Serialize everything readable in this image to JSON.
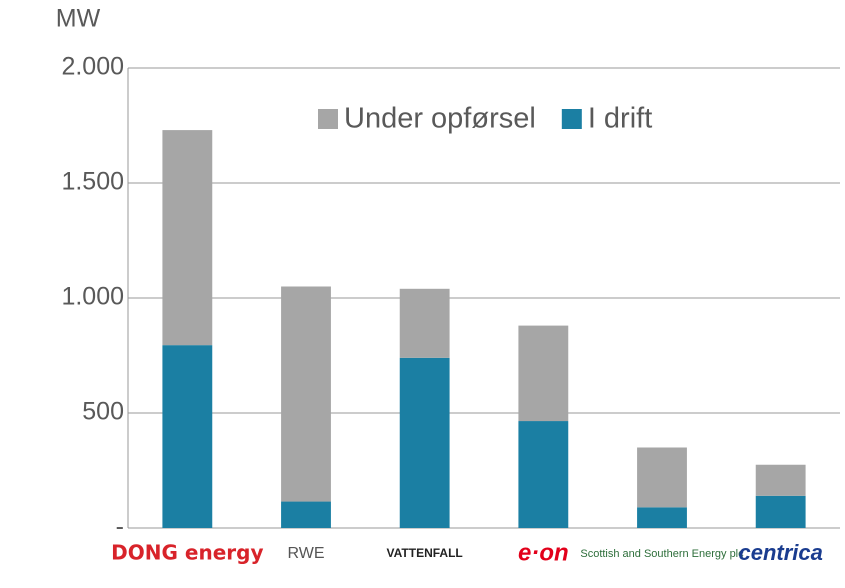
{
  "chart_data": {
    "type": "stacked_bar",
    "y_label": "MW",
    "categories": [
      "DONG energy",
      "RWE",
      "VATTENFALL",
      "e·on",
      "Scottish and Southern Energy plc",
      "centrica"
    ],
    "series": [
      {
        "name": "Under opførsel",
        "color": "#a6a6a6",
        "values": [
          935,
          935,
          300,
          415,
          260,
          135
        ]
      },
      {
        "name": "I drift",
        "color": "#1b7fa3",
        "values": [
          795,
          115,
          740,
          465,
          90,
          140
        ]
      }
    ],
    "ylim": [
      0,
      2000
    ],
    "yticks": [
      {
        "value": 0,
        "label": "-"
      },
      500,
      {
        "value": 1000,
        "label": "1.000"
      },
      {
        "value": 1500,
        "label": "1.500"
      },
      {
        "value": 2000,
        "label": "2.000"
      }
    ],
    "grid": true,
    "legend": "top"
  }
}
